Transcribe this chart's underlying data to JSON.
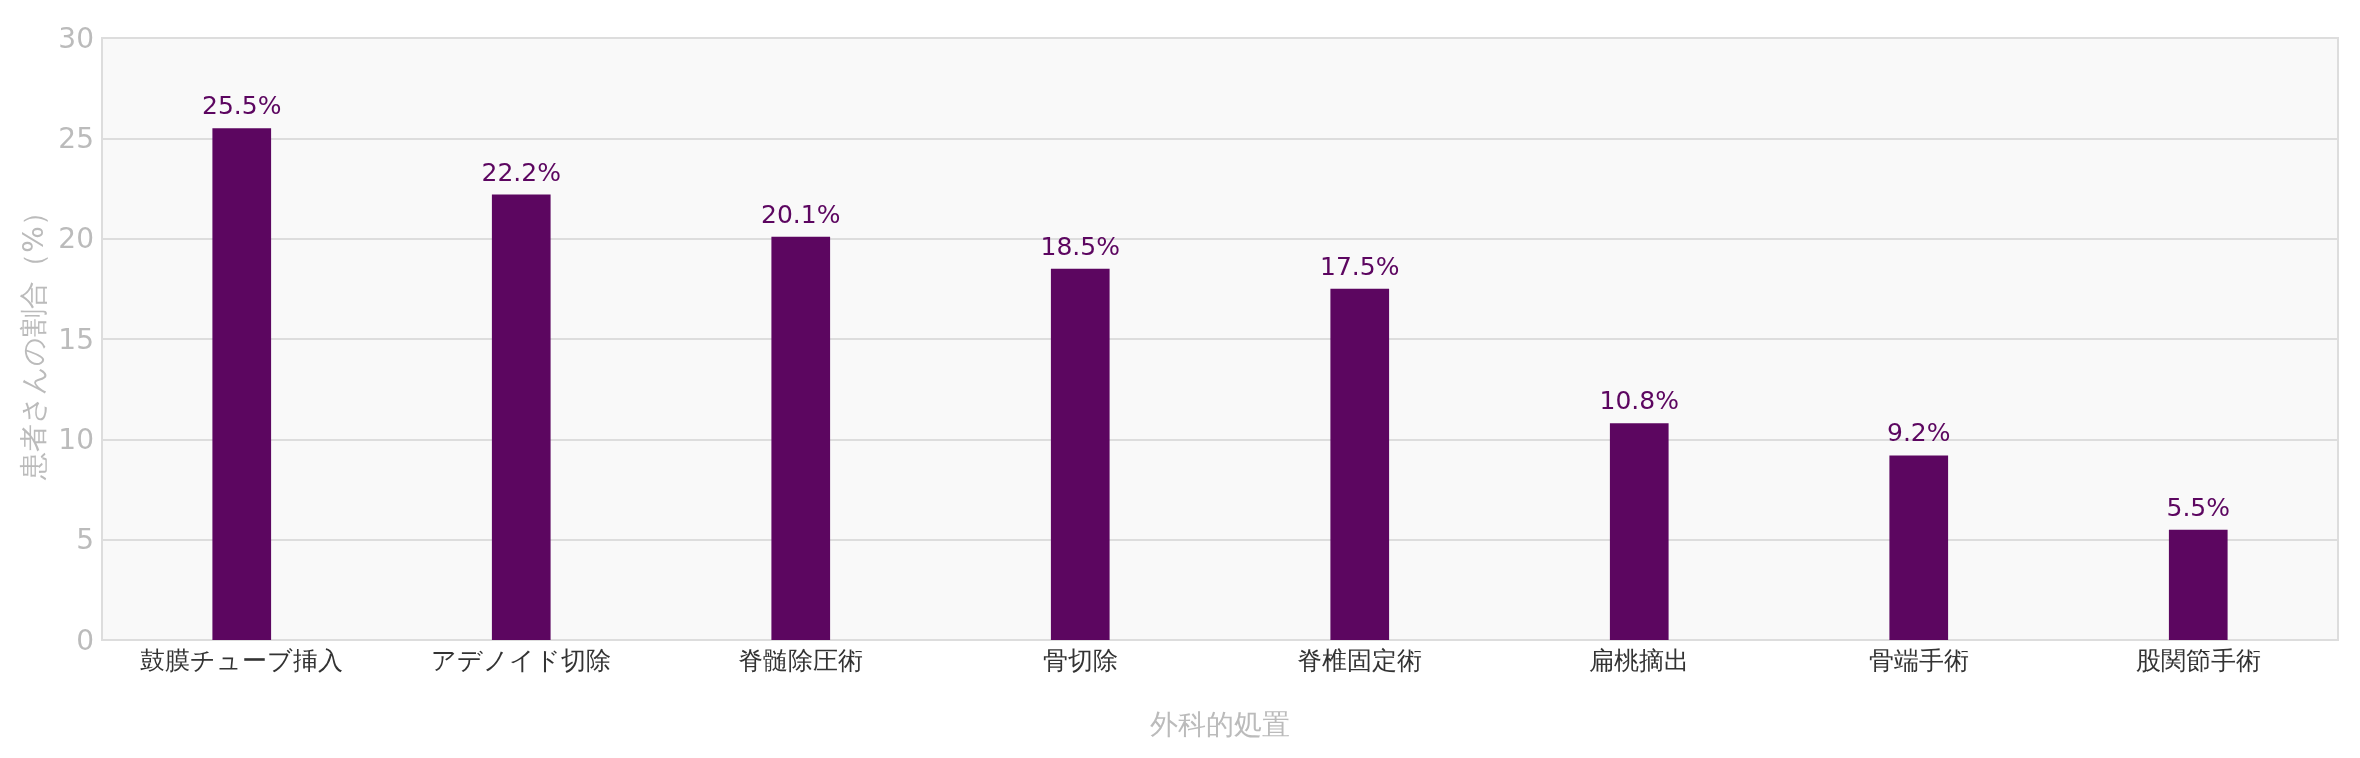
{
  "chart_data": {
    "type": "bar",
    "xlabel": "外科的処置",
    "ylabel": "患者さんの割合（%）",
    "categories": [
      "鼓膜チューブ挿入",
      "アデノイド切除",
      "脊髄除圧術",
      "骨切除",
      "脊椎固定術",
      "扁桃摘出",
      "骨端手術",
      "股関節手術"
    ],
    "values": [
      25.5,
      22.2,
      20.1,
      18.5,
      17.5,
      10.8,
      9.2,
      5.5
    ],
    "value_labels": [
      "25.5%",
      "22.2%",
      "20.1%",
      "18.5%",
      "17.5%",
      "10.8%",
      "9.2%",
      "5.5%"
    ],
    "color": "#5c0660",
    "ylim": [
      0,
      30
    ],
    "yticks": [
      0,
      5,
      10,
      15,
      20,
      25,
      30
    ],
    "grid": "y"
  }
}
